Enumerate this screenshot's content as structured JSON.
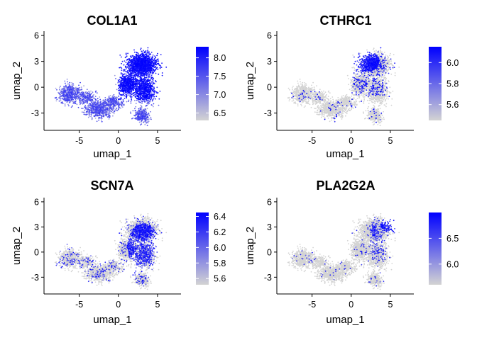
{
  "chart_data": [
    {
      "type": "scatter",
      "title": "COL1A1",
      "xlabel": "umap_1",
      "ylabel": "umap_2",
      "xlim": [
        -9.5,
        8
      ],
      "ylim": [
        -5,
        6.5
      ],
      "x_ticks": [
        -5,
        0,
        5
      ],
      "y_ticks": [
        -3,
        0,
        3,
        6
      ],
      "x_tick_labels": [
        "-5",
        "0",
        "5"
      ],
      "y_tick_labels": [
        "-3",
        "0",
        "3",
        "6"
      ],
      "colorbar": {
        "min": 6.3,
        "max": 8.3,
        "ticks": [
          6.5,
          7.0,
          7.5,
          8.0
        ],
        "tick_labels": [
          "6.5",
          "7.0",
          "7.5",
          "8.0"
        ],
        "low_color": "#d3d3d3",
        "high_color": "#0000ff"
      },
      "expression": "high"
    },
    {
      "type": "scatter",
      "title": "CTHRC1",
      "xlabel": "umap_1",
      "ylabel": "umap_2",
      "xlim": [
        -9.5,
        8
      ],
      "ylim": [
        -5,
        6.5
      ],
      "x_ticks": [
        -5,
        0,
        5
      ],
      "y_ticks": [
        -3,
        0,
        3,
        6
      ],
      "x_tick_labels": [
        "-5",
        "0",
        "5"
      ],
      "y_tick_labels": [
        "-3",
        "0",
        "3",
        "6"
      ],
      "colorbar": {
        "min": 5.45,
        "max": 6.15,
        "ticks": [
          5.6,
          5.8,
          6.0
        ],
        "tick_labels": [
          "5.6",
          "5.8",
          "6.0"
        ],
        "low_color": "#d3d3d3",
        "high_color": "#0000ff"
      },
      "expression": "top-cluster"
    },
    {
      "type": "scatter",
      "title": "SCN7A",
      "xlabel": "umap_1",
      "ylabel": "umap_2",
      "xlim": [
        -9.5,
        8
      ],
      "ylim": [
        -5,
        6.5
      ],
      "x_ticks": [
        -5,
        0,
        5
      ],
      "y_ticks": [
        -3,
        0,
        3,
        6
      ],
      "x_tick_labels": [
        "-5",
        "0",
        "5"
      ],
      "y_tick_labels": [
        "-3",
        "0",
        "3",
        "6"
      ],
      "colorbar": {
        "min": 5.52,
        "max": 6.45,
        "ticks": [
          5.6,
          5.8,
          6.0,
          6.2,
          6.4
        ],
        "tick_labels": [
          "5.6",
          "5.8",
          "6.0",
          "6.2",
          "6.4"
        ],
        "low_color": "#d3d3d3",
        "high_color": "#0000ff"
      },
      "expression": "right-cluster"
    },
    {
      "type": "scatter",
      "title": "PLA2G2A",
      "xlabel": "umap_1",
      "ylabel": "umap_2",
      "xlim": [
        -9.5,
        8
      ],
      "ylim": [
        -5,
        6.5
      ],
      "x_ticks": [
        -5,
        0,
        5
      ],
      "y_ticks": [
        -3,
        0,
        3,
        6
      ],
      "x_tick_labels": [
        "-5",
        "0",
        "5"
      ],
      "y_tick_labels": [
        "-3",
        "0",
        "3",
        "6"
      ],
      "colorbar": {
        "min": 5.6,
        "max": 7.0,
        "ticks": [
          6.0,
          6.5
        ],
        "tick_labels": [
          "6.0",
          "6.5"
        ],
        "low_color": "#d3d3d3",
        "high_color": "#0000ff"
      },
      "expression": "top-right-tip"
    }
  ]
}
